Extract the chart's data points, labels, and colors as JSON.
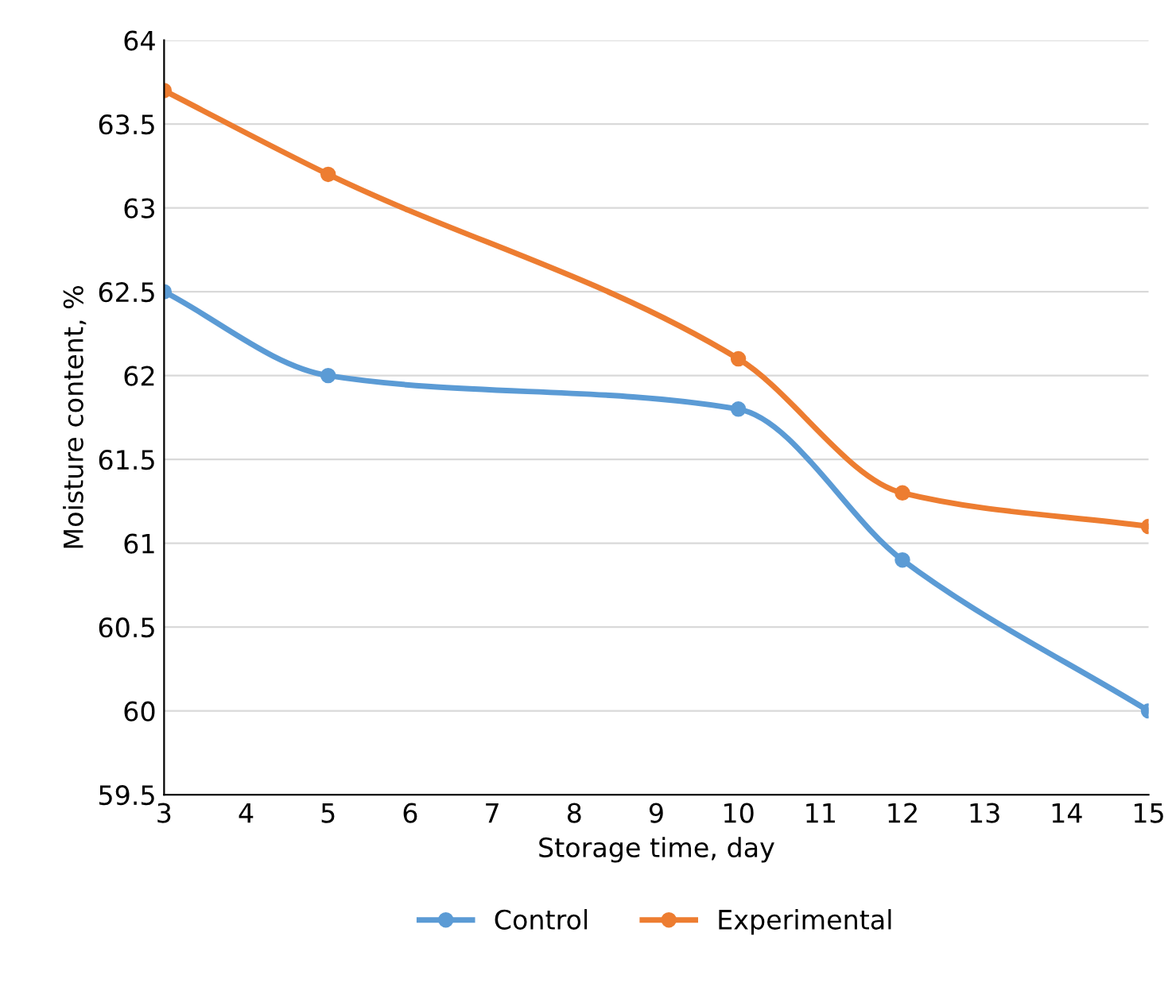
{
  "chart_data": {
    "type": "line",
    "xlabel": "Storage time, day",
    "ylabel": "Moisture content, %",
    "x": [
      3,
      5,
      10,
      12,
      15
    ],
    "series": [
      {
        "name": "Control",
        "color": "#5b9bd5",
        "values": [
          62.5,
          62.0,
          61.8,
          60.9,
          60.0
        ]
      },
      {
        "name": "Experimental",
        "color": "#ed7d31",
        "values": [
          63.7,
          63.2,
          62.1,
          61.3,
          61.1
        ]
      }
    ],
    "xlim": [
      3,
      15
    ],
    "xticks": [
      3,
      4,
      5,
      6,
      7,
      8,
      9,
      10,
      11,
      12,
      13,
      14,
      15
    ],
    "ylim": [
      59.5,
      64
    ],
    "yticks": [
      59.5,
      60,
      60.5,
      61,
      61.5,
      62,
      62.5,
      63,
      63.5,
      64
    ],
    "grid": "y",
    "legend": "bottom",
    "marker": "circle",
    "line_style": "solid"
  }
}
